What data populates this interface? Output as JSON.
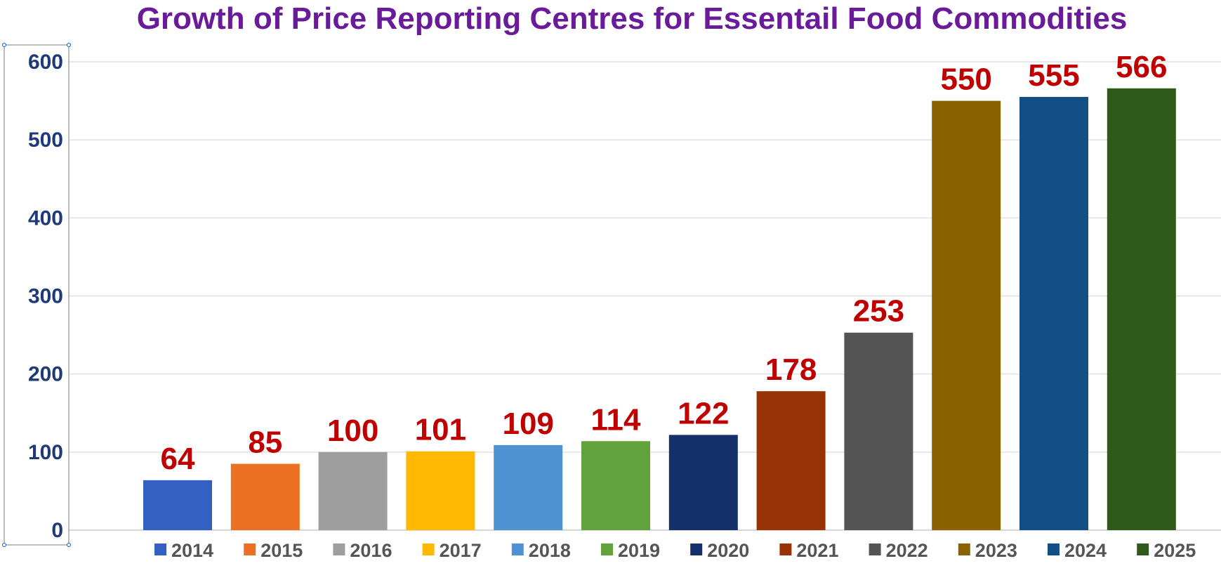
{
  "chart_data": {
    "type": "bar",
    "title": "Growth of Price Reporting Centres for Essentail Food Commodities",
    "xlabel": "",
    "ylabel": "",
    "ylim": [
      0,
      600
    ],
    "y_ticks": [
      "0",
      "100",
      "200",
      "300",
      "400",
      "500",
      "600"
    ],
    "grid": true,
    "legend_position": "bottom",
    "categories": [
      "2014",
      "2015",
      "2016",
      "2017",
      "2018",
      "2019",
      "2020",
      "2021",
      "2022",
      "2023",
      "2024",
      "2025"
    ],
    "values": [
      64,
      85,
      100,
      101,
      109,
      114,
      122,
      178,
      253,
      550,
      555,
      566
    ],
    "colors": [
      "#3461c1",
      "#eb7022",
      "#9e9e9e",
      "#ffb900",
      "#4d93d4",
      "#62a23a",
      "#13306a",
      "#993305",
      "#545454",
      "#8c6200",
      "#134f85",
      "#2f5a19"
    ]
  }
}
